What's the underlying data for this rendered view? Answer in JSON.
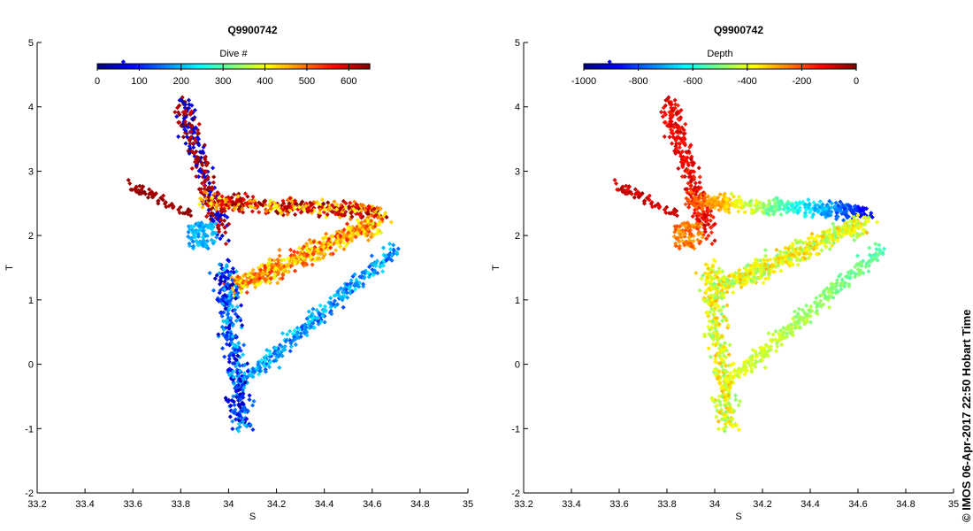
{
  "chart_data": [
    {
      "type": "scatter",
      "title": "Q9900742",
      "xlabel": "S",
      "ylabel": "T",
      "xlim": [
        33.2,
        35
      ],
      "ylim": [
        -2,
        5
      ],
      "xticks": [
        "33.2",
        "33.4",
        "33.6",
        "33.8",
        "34",
        "34.2",
        "34.4",
        "34.6",
        "34.8",
        "35"
      ],
      "yticks": [
        "-2",
        "-1",
        "0",
        "1",
        "2",
        "3",
        "4",
        "5"
      ],
      "colorbar": {
        "label": "Dive #",
        "range": [
          0,
          650
        ],
        "colormap": "jet",
        "ticks": [
          "0",
          "100",
          "200",
          "300",
          "400",
          "500",
          "600"
        ],
        "tick_values": [
          0,
          100,
          200,
          300,
          400,
          500,
          600
        ],
        "placement": "top"
      },
      "color_variable": "dive",
      "point_count_note": "dense T-S scatter (thousands of points), colored by dive number"
    },
    {
      "type": "scatter",
      "title": "Q9900742",
      "xlabel": "S",
      "ylabel": "T",
      "xlim": [
        33.2,
        35
      ],
      "ylim": [
        -2,
        5
      ],
      "xticks": [
        "33.2",
        "33.4",
        "33.6",
        "33.8",
        "34",
        "34.2",
        "34.4",
        "34.6",
        "34.8",
        "35"
      ],
      "yticks": [
        "-2",
        "-1",
        "0",
        "1",
        "2",
        "3",
        "4",
        "5"
      ],
      "colorbar": {
        "label": "Depth",
        "range": [
          -1000,
          0
        ],
        "colormap": "jet",
        "ticks": [
          "-1000",
          "-800",
          "-600",
          "-400",
          "-200",
          "0"
        ],
        "tick_values": [
          -1000,
          -800,
          -600,
          -400,
          -200,
          0
        ],
        "placement": "top"
      },
      "color_variable": "depth",
      "point_count_note": "dense T-S scatter (thousands of points), colored by depth"
    }
  ],
  "footer": {
    "text": "© IMOS 06-Apr-2017 22:50 Hobart Time"
  },
  "colors": {
    "axis": "#000000",
    "background": "#ffffff"
  }
}
